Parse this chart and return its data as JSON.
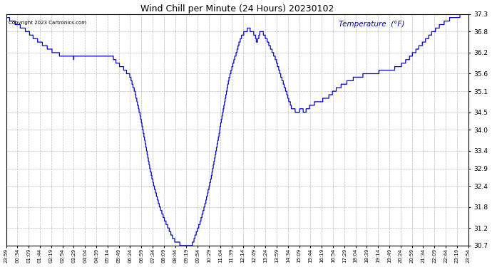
{
  "title": "Wind Chill per Minute (24 Hours) 20230102",
  "ylabel": "Temperature  (°F)",
  "copyright": "Copyright 2023 Cartronics.com",
  "line_color": "#0000cc",
  "bg_color": "#ffffff",
  "grid_color": "#aaaaaa",
  "ylim": [
    30.7,
    37.3
  ],
  "yticks": [
    30.7,
    31.2,
    31.8,
    32.4,
    32.9,
    33.4,
    34.0,
    34.5,
    35.1,
    35.6,
    36.2,
    36.8,
    37.3
  ],
  "xtick_labels": [
    "23:59",
    "00:34",
    "01:09",
    "01:44",
    "02:19",
    "02:54",
    "03:29",
    "04:04",
    "04:39",
    "05:14",
    "05:49",
    "06:24",
    "06:59",
    "07:34",
    "08:09",
    "08:44",
    "09:19",
    "09:54",
    "10:29",
    "11:04",
    "11:39",
    "12:14",
    "12:49",
    "13:24",
    "13:59",
    "14:34",
    "15:09",
    "15:44",
    "16:19",
    "16:54",
    "17:29",
    "18:04",
    "18:39",
    "19:14",
    "19:49",
    "20:24",
    "20:59",
    "21:34",
    "22:09",
    "22:44",
    "23:19",
    "23:54"
  ],
  "control_points": [
    [
      0,
      37.2
    ],
    [
      20,
      37.1
    ],
    [
      35,
      37.0
    ],
    [
      60,
      36.85
    ],
    [
      90,
      36.6
    ],
    [
      120,
      36.4
    ],
    [
      150,
      36.2
    ],
    [
      180,
      36.1
    ],
    [
      210,
      36.05
    ],
    [
      245,
      36.1
    ],
    [
      260,
      36.15
    ],
    [
      280,
      36.1
    ],
    [
      310,
      36.1
    ],
    [
      330,
      36.1
    ],
    [
      345,
      35.9
    ],
    [
      360,
      35.8
    ],
    [
      375,
      35.65
    ],
    [
      385,
      35.55
    ],
    [
      400,
      35.1
    ],
    [
      415,
      34.5
    ],
    [
      430,
      33.8
    ],
    [
      445,
      33.0
    ],
    [
      460,
      32.4
    ],
    [
      475,
      31.9
    ],
    [
      490,
      31.5
    ],
    [
      500,
      31.3
    ],
    [
      510,
      31.1
    ],
    [
      520,
      30.9
    ],
    [
      530,
      30.8
    ],
    [
      540,
      30.75
    ],
    [
      550,
      30.72
    ],
    [
      560,
      30.72
    ],
    [
      570,
      30.72
    ],
    [
      580,
      30.75
    ],
    [
      590,
      31.0
    ],
    [
      605,
      31.4
    ],
    [
      620,
      31.9
    ],
    [
      635,
      32.5
    ],
    [
      650,
      33.2
    ],
    [
      665,
      34.0
    ],
    [
      680,
      34.8
    ],
    [
      695,
      35.5
    ],
    [
      710,
      36.0
    ],
    [
      720,
      36.3
    ],
    [
      728,
      36.55
    ],
    [
      735,
      36.7
    ],
    [
      740,
      36.75
    ],
    [
      745,
      36.8
    ],
    [
      750,
      36.85
    ],
    [
      755,
      36.9
    ],
    [
      760,
      36.85
    ],
    [
      765,
      36.8
    ],
    [
      770,
      36.75
    ],
    [
      775,
      36.7
    ],
    [
      780,
      36.5
    ],
    [
      785,
      36.6
    ],
    [
      790,
      36.75
    ],
    [
      795,
      36.8
    ],
    [
      800,
      36.75
    ],
    [
      810,
      36.6
    ],
    [
      820,
      36.4
    ],
    [
      830,
      36.2
    ],
    [
      840,
      36.0
    ],
    [
      850,
      35.7
    ],
    [
      860,
      35.4
    ],
    [
      870,
      35.15
    ],
    [
      880,
      34.85
    ],
    [
      890,
      34.6
    ],
    [
      900,
      34.55
    ],
    [
      910,
      34.52
    ],
    [
      920,
      34.6
    ],
    [
      925,
      34.55
    ],
    [
      930,
      34.52
    ],
    [
      940,
      34.6
    ],
    [
      950,
      34.7
    ],
    [
      960,
      34.75
    ],
    [
      970,
      34.8
    ],
    [
      985,
      34.85
    ],
    [
      1000,
      34.9
    ],
    [
      1010,
      35.0
    ],
    [
      1020,
      35.1
    ],
    [
      1035,
      35.2
    ],
    [
      1050,
      35.3
    ],
    [
      1070,
      35.4
    ],
    [
      1090,
      35.5
    ],
    [
      1110,
      35.55
    ],
    [
      1130,
      35.6
    ],
    [
      1160,
      35.65
    ],
    [
      1190,
      35.7
    ],
    [
      1210,
      35.75
    ],
    [
      1230,
      35.85
    ],
    [
      1250,
      36.0
    ],
    [
      1270,
      36.2
    ],
    [
      1290,
      36.4
    ],
    [
      1310,
      36.6
    ],
    [
      1330,
      36.8
    ],
    [
      1355,
      37.0
    ],
    [
      1380,
      37.15
    ],
    [
      1400,
      37.22
    ],
    [
      1420,
      37.27
    ],
    [
      1439,
      37.3
    ]
  ]
}
